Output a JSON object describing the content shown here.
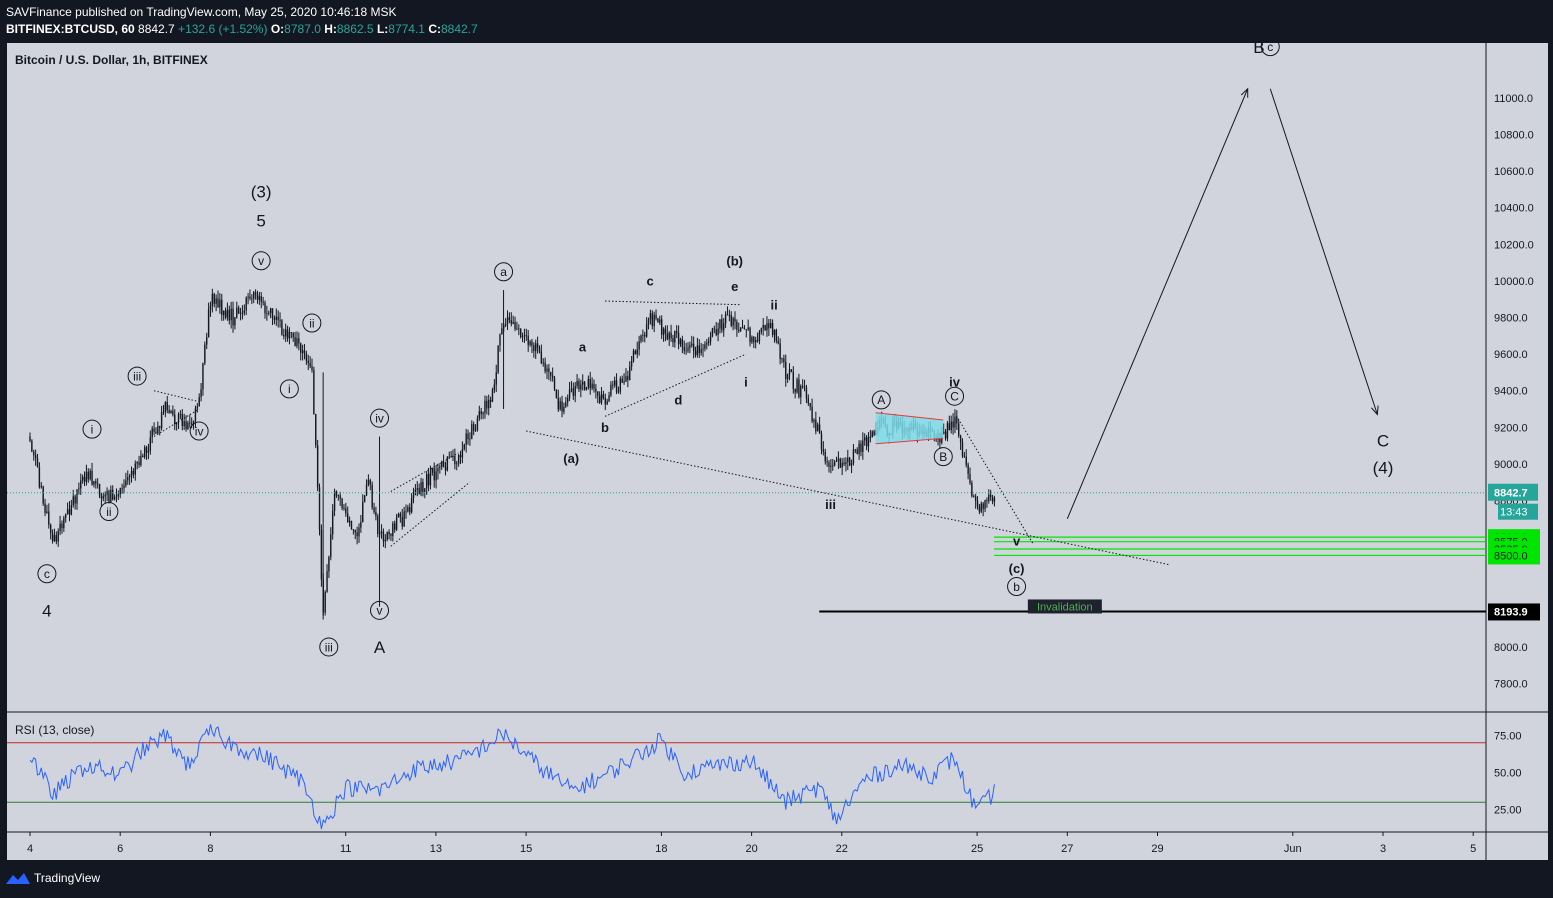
{
  "header": {
    "line1": "SAVFinance published on TradingView.com, May 25, 2020 10:46:18 MSK",
    "symbol": "BITFINEX:BTCUSD, 60",
    "last": "8842.7",
    "change": "+132.6 (+1.52%)",
    "o_label": "O:",
    "o": "8787.0",
    "h_label": "H:",
    "h": "8862.5",
    "l_label": "L:",
    "l": "8774.1",
    "c_label": "C:",
    "c": "8842.7"
  },
  "main_title": "Bitcoin / U.S. Dollar, 1h, BITFINEX",
  "rsi_title": "RSI (13, close)",
  "footer": {
    "brand": "TradingView"
  },
  "colors": {
    "bg": "#d1d4dc",
    "candle": "#131722",
    "price_line": "#26a69a",
    "rsi_line": "#2962ff",
    "rsi_upper": "#c62828",
    "rsi_lower": "#2e7d32",
    "zone": "#00e600",
    "triangle_fill": "#7fdcea",
    "triangle_border": "#e53935"
  },
  "chart_data": [
    {
      "type": "candlestick",
      "ylim": [
        7650,
        11300
      ],
      "xlabels": [
        "4",
        "6",
        "8",
        "11",
        "13",
        "15",
        "18",
        "20",
        "22",
        "25",
        "27",
        "29",
        "Jun",
        "3",
        "5"
      ],
      "yticks": [
        7800,
        8000,
        8600,
        8800,
        9000,
        9200,
        9400,
        9600,
        9800,
        10000,
        10200,
        10400,
        10600,
        10800,
        11000
      ],
      "ytick_labels": [
        "7800.0",
        "8000.0",
        "8600.0",
        "8800.0",
        "9000.0",
        "9200.0",
        "9400.0",
        "9600.0",
        "9800.0",
        "10000.0",
        "10200.0",
        "10400.0",
        "10600.0",
        "10800.0",
        "11000.0"
      ],
      "last_price": {
        "value": 8842.7,
        "label": "8842.7",
        "countdown": "13:43"
      },
      "levels": [
        {
          "value": 8600,
          "label": "8600.0"
        },
        {
          "value": 8575,
          "label": "8575.0"
        },
        {
          "value": 8535,
          "label": "8535.0"
        },
        {
          "value": 8500,
          "label": "8500.0"
        }
      ],
      "invalidation": {
        "value": 8193.9,
        "label": "8193.9",
        "text": "Invalidation"
      },
      "price_path": [
        [
          "May 4 00:00",
          9150
        ],
        [
          "May 4 12:00",
          8560
        ],
        [
          "May 5 06:00",
          8950
        ],
        [
          "May 5 18:00",
          8800
        ],
        [
          "May 6 12:00",
          9050
        ],
        [
          "May 7 00:00",
          9300
        ],
        [
          "May 7 12:00",
          9200
        ],
        [
          "May 7 18:00",
          9350
        ],
        [
          "May 8 00:00",
          9900
        ],
        [
          "May 8 12:00",
          9800
        ],
        [
          "May 9 00:00",
          9950
        ],
        [
          "May 9 12:00",
          9750
        ],
        [
          "May 10 00:00",
          9650
        ],
        [
          "May 10 06:00",
          9550
        ],
        [
          "May 10 12:00",
          8200
        ],
        [
          "May 10 18:00",
          8850
        ],
        [
          "May 11 06:00",
          8600
        ],
        [
          "May 11 12:00",
          8900
        ],
        [
          "May 11 18:00",
          8600
        ],
        [
          "May 12 06:00",
          8700
        ],
        [
          "May 12 18:00",
          8900
        ],
        [
          "May 13 12:00",
          9050
        ],
        [
          "May 14 06:00",
          9400
        ],
        [
          "May 14 12:00",
          9800
        ],
        [
          "May 15 00:00",
          9700
        ],
        [
          "May 15 12:00",
          9500
        ],
        [
          "May 15 18:00",
          9300
        ],
        [
          "May 16 06:00",
          9450
        ],
        [
          "May 16 18:00",
          9350
        ],
        [
          "May 17 06:00",
          9500
        ],
        [
          "May 17 18:00",
          9800
        ],
        [
          "May 18 06:00",
          9700
        ],
        [
          "May 18 18:00",
          9600
        ],
        [
          "May 19 12:00",
          9800
        ],
        [
          "May 20 00:00",
          9700
        ],
        [
          "May 20 12:00",
          9750
        ],
        [
          "May 20 18:00",
          9500
        ],
        [
          "May 21 06:00",
          9350
        ],
        [
          "May 21 18:00",
          8950
        ],
        [
          "May 22 06:00",
          9050
        ],
        [
          "May 22 18:00",
          9200
        ],
        [
          "May 23 12:00",
          9200
        ],
        [
          "May 24 06:00",
          9150
        ],
        [
          "May 24 12:00",
          9250
        ],
        [
          "May 24 18:00",
          9000
        ],
        [
          "May 25 00:00",
          8750
        ],
        [
          "May 25 06:00",
          8800
        ],
        [
          "May 25 10:00",
          8842.7
        ]
      ],
      "wave_labels": [
        {
          "text": "c",
          "circled": true,
          "date": "May 4 09:00",
          "price": 8400
        },
        {
          "text": "4",
          "date": "May 4 09:00",
          "price": 8200
        },
        {
          "text": "i",
          "circled": true,
          "date": "May 5 09:00",
          "price": 9190
        },
        {
          "text": "ii",
          "circled": true,
          "date": "May 5 18:00",
          "price": 8740
        },
        {
          "text": "iii",
          "circled": true,
          "date": "May 6 09:00",
          "price": 9480
        },
        {
          "text": "iv",
          "circled": true,
          "date": "May 7 18:00",
          "price": 9180
        },
        {
          "text": "(3)",
          "date": "May 9 03:00",
          "price": 10490
        },
        {
          "text": "5",
          "date": "May 9 03:00",
          "price": 10330
        },
        {
          "text": "v",
          "circled": true,
          "date": "May 9 03:00",
          "price": 10110
        },
        {
          "text": "ii",
          "circled": true,
          "date": "May 10 06:00",
          "price": 9770
        },
        {
          "text": "i",
          "circled": true,
          "date": "May 9 18:00",
          "price": 9410
        },
        {
          "text": "iii",
          "circled": true,
          "date": "May 10 15:00",
          "price": 8000
        },
        {
          "text": "iv",
          "circled": true,
          "date": "May 11 18:00",
          "price": 9250
        },
        {
          "text": "v",
          "circled": true,
          "date": "May 11 18:00",
          "price": 8200
        },
        {
          "text": "A",
          "date": "May 11 18:00",
          "price": 8000
        },
        {
          "text": "a",
          "circled": true,
          "date": "May 14 12:00",
          "price": 10050
        },
        {
          "text": "(a)",
          "date": "May 16 00:00",
          "price": 9030
        },
        {
          "text": "a",
          "date": "May 16 06:00",
          "price": 9640
        },
        {
          "text": "b",
          "date": "May 16 18:00",
          "price": 9200
        },
        {
          "text": "c",
          "date": "May 17 18:00",
          "price": 10000
        },
        {
          "text": "d",
          "date": "May 18 09:00",
          "price": 9350
        },
        {
          "text": "(b)",
          "date": "May 19 15:00",
          "price": 10110
        },
        {
          "text": "e",
          "date": "May 19 15:00",
          "price": 9970
        },
        {
          "text": "ii",
          "date": "May 20 12:00",
          "price": 9870
        },
        {
          "text": "i",
          "date": "May 19 21:00",
          "price": 9450
        },
        {
          "text": "iii",
          "date": "May 21 18:00",
          "price": 8780
        },
        {
          "text": "A",
          "circled": true,
          "date": "May 22 21:00",
          "price": 9350
        },
        {
          "text": "B",
          "circled": true,
          "date": "May 24 06:00",
          "price": 9040
        },
        {
          "text": "iv",
          "date": "May 24 12:00",
          "price": 9450
        },
        {
          "text": "C",
          "circled": true,
          "date": "May 24 12:00",
          "price": 9370
        },
        {
          "text": "v",
          "date": "May 25 21:00",
          "price": 8580
        },
        {
          "text": "(c)",
          "date": "May 25 21:00",
          "price": 8430
        },
        {
          "text": "b",
          "circled": true,
          "date": "May 25 21:00",
          "price": 8330
        },
        {
          "text": "B",
          "date": "May 31 06:00",
          "price": 11280
        },
        {
          "text": "c",
          "circled": true,
          "date": "May 31 12:00",
          "price": 11280
        },
        {
          "text": "C",
          "date": "Jun 3 00:00",
          "price": 9130
        },
        {
          "text": "(4)",
          "date": "Jun 3 00:00",
          "price": 8980
        }
      ],
      "projection": [
        [
          "May 27 00:00",
          8700
        ],
        [
          "May 31 00:00",
          11050
        ],
        [
          "May 31 12:00",
          11050
        ],
        [
          "Jun 2 21:00",
          9270
        ]
      ]
    },
    {
      "type": "line",
      "name": "RSI (13, close)",
      "ylim": [
        10,
        90
      ],
      "yticks": [
        25,
        50,
        75
      ],
      "ytick_labels": [
        "25.00",
        "50.00",
        "75.00"
      ],
      "bands": [
        70,
        30
      ],
      "values": [
        {
          "date": "May 4 00:00",
          "rsi": 62
        },
        {
          "date": "May 4 12:00",
          "rsi": 35
        },
        {
          "date": "May 5 06:00",
          "rsi": 55
        },
        {
          "date": "May 6 00:00",
          "rsi": 48
        },
        {
          "date": "May 6 12:00",
          "rsi": 65
        },
        {
          "date": "May 7 00:00",
          "rsi": 75
        },
        {
          "date": "May 7 12:00",
          "rsi": 55
        },
        {
          "date": "May 8 00:00",
          "rsi": 78
        },
        {
          "date": "May 8 12:00",
          "rsi": 68
        },
        {
          "date": "May 9 06:00",
          "rsi": 60
        },
        {
          "date": "May 10 00:00",
          "rsi": 45
        },
        {
          "date": "May 10 12:00",
          "rsi": 14
        },
        {
          "date": "May 11 00:00",
          "rsi": 40
        },
        {
          "date": "May 11 18:00",
          "rsi": 38
        },
        {
          "date": "May 12 12:00",
          "rsi": 52
        },
        {
          "date": "May 13 12:00",
          "rsi": 58
        },
        {
          "date": "May 14 00:00",
          "rsi": 66
        },
        {
          "date": "May 14 12:00",
          "rsi": 76
        },
        {
          "date": "May 15 06:00",
          "rsi": 55
        },
        {
          "date": "May 16 00:00",
          "rsi": 38
        },
        {
          "date": "May 16 18:00",
          "rsi": 48
        },
        {
          "date": "May 17 12:00",
          "rsi": 62
        },
        {
          "date": "May 18 00:00",
          "rsi": 72
        },
        {
          "date": "May 18 12:00",
          "rsi": 50
        },
        {
          "date": "May 19 06:00",
          "rsi": 55
        },
        {
          "date": "May 20 00:00",
          "rsi": 58
        },
        {
          "date": "May 20 18:00",
          "rsi": 30
        },
        {
          "date": "May 21 12:00",
          "rsi": 40
        },
        {
          "date": "May 21 21:00",
          "rsi": 18
        },
        {
          "date": "May 22 12:00",
          "rsi": 45
        },
        {
          "date": "May 23 06:00",
          "rsi": 55
        },
        {
          "date": "May 24 00:00",
          "rsi": 48
        },
        {
          "date": "May 24 12:00",
          "rsi": 60
        },
        {
          "date": "May 24 18:00",
          "rsi": 40
        },
        {
          "date": "May 25 00:00",
          "rsi": 24
        },
        {
          "date": "May 25 10:00",
          "rsi": 38
        }
      ]
    }
  ]
}
